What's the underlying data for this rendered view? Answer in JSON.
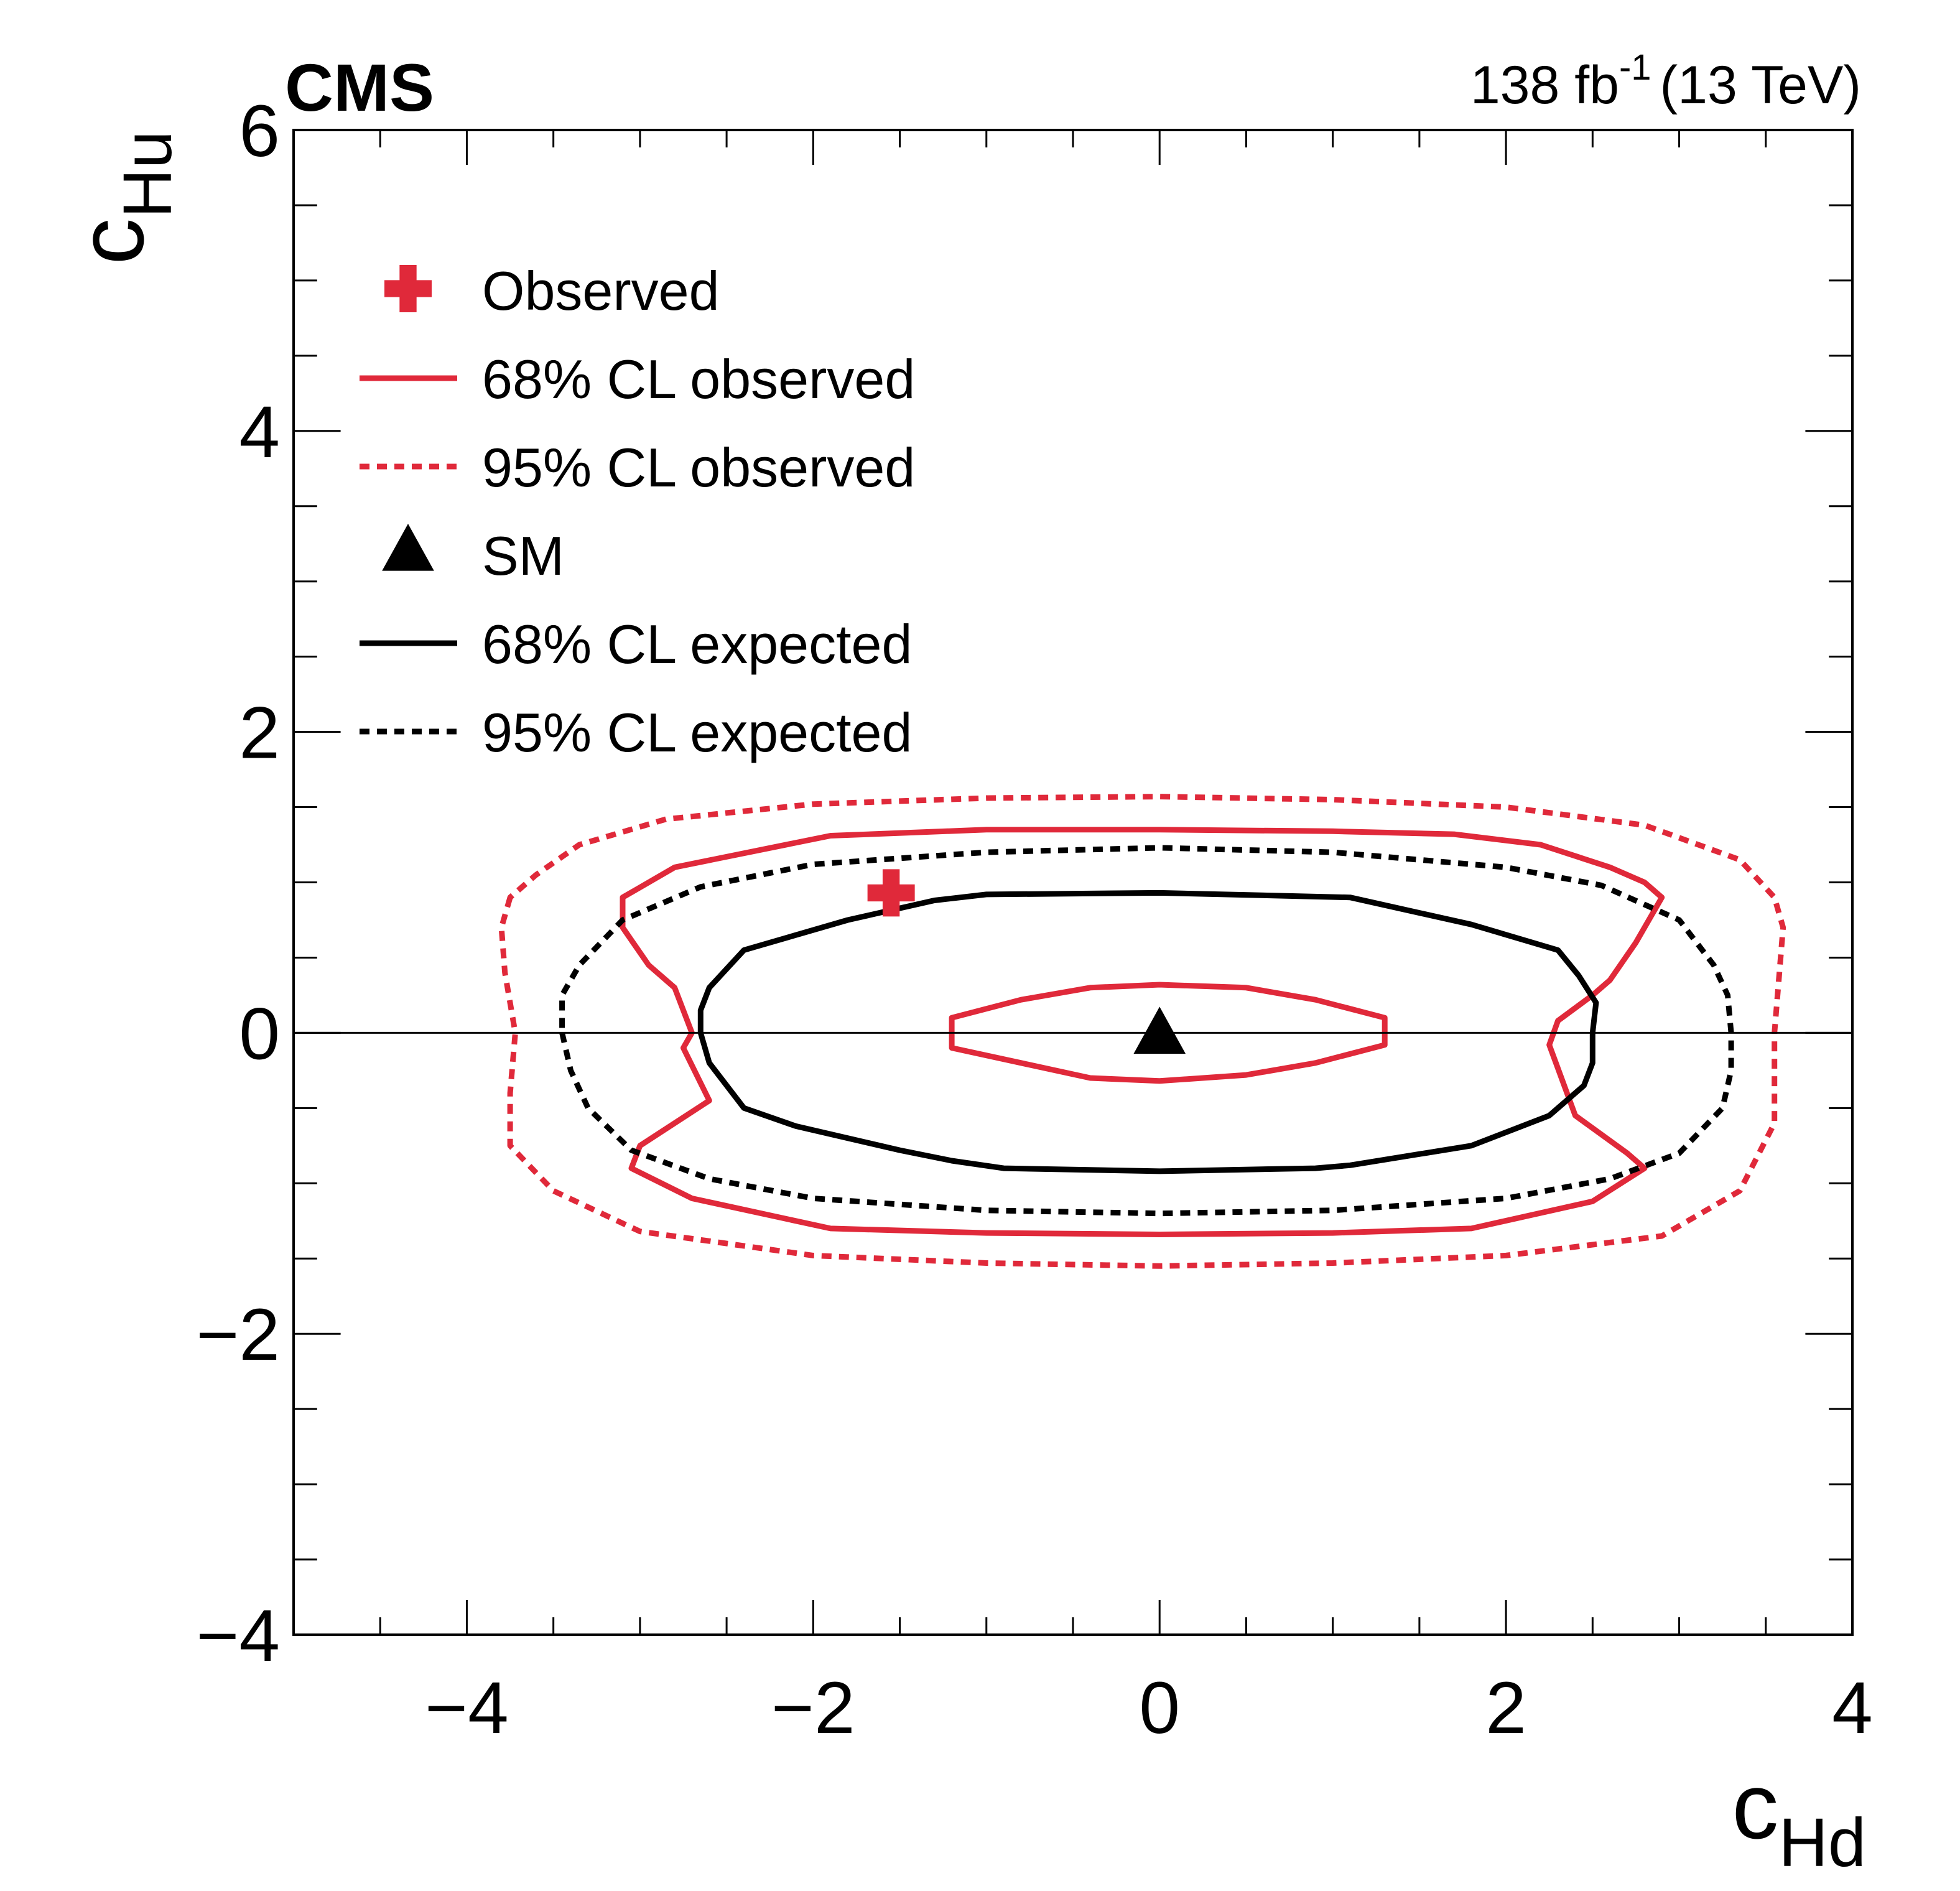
{
  "chart_data": {
    "type": "line",
    "experiment_label": "CMS",
    "lumi_label": "138 fb",
    "lumi_exponent": "-1",
    "energy_label": "(13 TeV)",
    "xlabel": {
      "base": "c",
      "sub": "Hd"
    },
    "ylabel": {
      "base": "c",
      "sub": "Hu"
    },
    "xlim": [
      -5,
      4
    ],
    "ylim": [
      -4,
      6
    ],
    "x_major_ticks": [
      -4,
      -2,
      0,
      2,
      4
    ],
    "x_tick_labels": [
      "−4",
      "−2",
      "0",
      "2",
      "4"
    ],
    "y_major_ticks": [
      -4,
      -2,
      0,
      2,
      4,
      6
    ],
    "y_tick_labels": [
      "−4",
      "−2",
      "0",
      "2",
      "4",
      "6"
    ],
    "x_minor_step": 0.5,
    "y_minor_step": 0.5,
    "reference_line_y": 0,
    "colors": {
      "observed": "#e0293a",
      "expected": "#000000"
    },
    "legend": [
      {
        "label": "Observed",
        "kind": "cross",
        "color": "#e0293a"
      },
      {
        "label": "68% CL observed",
        "kind": "solid",
        "color": "#e0293a"
      },
      {
        "label": "95% CL observed",
        "kind": "dashed",
        "color": "#e0293a"
      },
      {
        "label": "SM",
        "kind": "triangle",
        "color": "#000000"
      },
      {
        "label": "68% CL expected",
        "kind": "solid",
        "color": "#000000"
      },
      {
        "label": "95% CL expected",
        "kind": "dashed",
        "color": "#000000"
      }
    ],
    "points": {
      "observed_best_fit": {
        "x": -1.55,
        "y": 0.93
      },
      "sm": {
        "x": 0,
        "y": 0
      }
    },
    "contours": [
      {
        "name": "95% CL observed",
        "color": "#e0293a",
        "style": "dashed",
        "points": [
          [
            -3.75,
            0.9
          ],
          [
            -3.8,
            0.7
          ],
          [
            -3.78,
            0.4
          ],
          [
            -3.72,
            0.0
          ],
          [
            -3.75,
            -0.4
          ],
          [
            -3.75,
            -0.75
          ],
          [
            -3.5,
            -1.05
          ],
          [
            -3.0,
            -1.32
          ],
          [
            -2.0,
            -1.48
          ],
          [
            -1.0,
            -1.53
          ],
          [
            0.0,
            -1.55
          ],
          [
            1.0,
            -1.53
          ],
          [
            2.0,
            -1.48
          ],
          [
            2.9,
            -1.35
          ],
          [
            3.35,
            -1.05
          ],
          [
            3.55,
            -0.6
          ],
          [
            3.55,
            0.0
          ],
          [
            3.6,
            0.7
          ],
          [
            3.55,
            0.9
          ],
          [
            3.35,
            1.15
          ],
          [
            2.8,
            1.38
          ],
          [
            2.0,
            1.5
          ],
          [
            1.0,
            1.55
          ],
          [
            0.0,
            1.57
          ],
          [
            -1.0,
            1.56
          ],
          [
            -2.0,
            1.52
          ],
          [
            -2.85,
            1.42
          ],
          [
            -3.35,
            1.25
          ],
          [
            -3.6,
            1.05
          ],
          [
            -3.75,
            0.9
          ]
        ]
      },
      {
        "name": "68% CL observed outer",
        "color": "#e0293a",
        "style": "solid",
        "points": [
          [
            -2.75,
            -0.1
          ],
          [
            -2.6,
            -0.45
          ],
          [
            -3.0,
            -0.75
          ],
          [
            -3.05,
            -0.9
          ],
          [
            -2.7,
            -1.1
          ],
          [
            -1.9,
            -1.3
          ],
          [
            -1.0,
            -1.33
          ],
          [
            0.0,
            -1.34
          ],
          [
            1.0,
            -1.33
          ],
          [
            1.8,
            -1.3
          ],
          [
            2.5,
            -1.12
          ],
          [
            2.8,
            -0.9
          ],
          [
            2.7,
            -0.8
          ],
          [
            2.4,
            -0.55
          ],
          [
            2.25,
            -0.08
          ],
          [
            2.3,
            0.08
          ],
          [
            2.5,
            0.25
          ],
          [
            2.6,
            0.35
          ],
          [
            2.75,
            0.6
          ],
          [
            2.9,
            0.9
          ],
          [
            2.8,
            1.0
          ],
          [
            2.6,
            1.1
          ],
          [
            2.2,
            1.25
          ],
          [
            1.7,
            1.32
          ],
          [
            1.0,
            1.34
          ],
          [
            0.0,
            1.35
          ],
          [
            -1.0,
            1.35
          ],
          [
            -1.9,
            1.31
          ],
          [
            -2.8,
            1.1
          ],
          [
            -3.1,
            0.9
          ],
          [
            -3.1,
            0.7
          ],
          [
            -2.95,
            0.45
          ],
          [
            -2.8,
            0.3
          ],
          [
            -2.7,
            0.0
          ],
          [
            -2.75,
            -0.1
          ]
        ]
      },
      {
        "name": "68% CL observed inner",
        "color": "#e0293a",
        "style": "solid",
        "points": [
          [
            -1.2,
            0.0
          ],
          [
            -1.2,
            0.1
          ],
          [
            -0.8,
            0.22
          ],
          [
            -0.4,
            0.3
          ],
          [
            0.0,
            0.32
          ],
          [
            0.5,
            0.3
          ],
          [
            0.9,
            0.22
          ],
          [
            1.3,
            0.1
          ],
          [
            1.3,
            0.0
          ],
          [
            1.3,
            -0.08
          ],
          [
            0.9,
            -0.2
          ],
          [
            0.5,
            -0.28
          ],
          [
            0.0,
            -0.32
          ],
          [
            -0.4,
            -0.3
          ],
          [
            -0.8,
            -0.2
          ],
          [
            -1.2,
            -0.1
          ],
          [
            -1.2,
            0.0
          ]
        ]
      },
      {
        "name": "95% CL expected",
        "color": "#000000",
        "style": "dashed",
        "points": [
          [
            -3.45,
            0.0
          ],
          [
            -3.4,
            -0.25
          ],
          [
            -3.3,
            -0.5
          ],
          [
            -3.05,
            -0.78
          ],
          [
            -2.6,
            -0.97
          ],
          [
            -2.0,
            -1.1
          ],
          [
            -1.0,
            -1.18
          ],
          [
            0.0,
            -1.2
          ],
          [
            1.0,
            -1.18
          ],
          [
            2.0,
            -1.1
          ],
          [
            2.6,
            -0.97
          ],
          [
            3.0,
            -0.8
          ],
          [
            3.25,
            -0.5
          ],
          [
            3.3,
            -0.25
          ],
          [
            3.3,
            0.0
          ],
          [
            3.28,
            0.25
          ],
          [
            3.2,
            0.45
          ],
          [
            3.0,
            0.75
          ],
          [
            2.55,
            0.98
          ],
          [
            2.0,
            1.1
          ],
          [
            1.0,
            1.2
          ],
          [
            0.0,
            1.23
          ],
          [
            -1.0,
            1.2
          ],
          [
            -2.0,
            1.12
          ],
          [
            -2.65,
            0.97
          ],
          [
            -3.1,
            0.75
          ],
          [
            -3.35,
            0.45
          ],
          [
            -3.45,
            0.25
          ],
          [
            -3.45,
            0.0
          ]
        ]
      },
      {
        "name": "68% CL expected",
        "color": "#000000",
        "style": "solid",
        "points": [
          [
            -2.65,
            0.0
          ],
          [
            -2.6,
            -0.2
          ],
          [
            -2.4,
            -0.5
          ],
          [
            -2.1,
            -0.62
          ],
          [
            -1.5,
            -0.78
          ],
          [
            -1.2,
            -0.85
          ],
          [
            -0.9,
            -0.9
          ],
          [
            0.0,
            -0.92
          ],
          [
            0.9,
            -0.9
          ],
          [
            1.1,
            -0.88
          ],
          [
            1.8,
            -0.75
          ],
          [
            2.25,
            -0.55
          ],
          [
            2.45,
            -0.35
          ],
          [
            2.5,
            -0.2
          ],
          [
            2.5,
            0.0
          ],
          [
            2.52,
            0.2
          ],
          [
            2.42,
            0.38
          ],
          [
            2.3,
            0.55
          ],
          [
            1.8,
            0.72
          ],
          [
            1.1,
            0.9
          ],
          [
            0.0,
            0.93
          ],
          [
            -1.0,
            0.92
          ],
          [
            -1.3,
            0.88
          ],
          [
            -1.8,
            0.75
          ],
          [
            -2.4,
            0.55
          ],
          [
            -2.6,
            0.3
          ],
          [
            -2.65,
            0.15
          ],
          [
            -2.65,
            0.0
          ]
        ]
      }
    ]
  }
}
